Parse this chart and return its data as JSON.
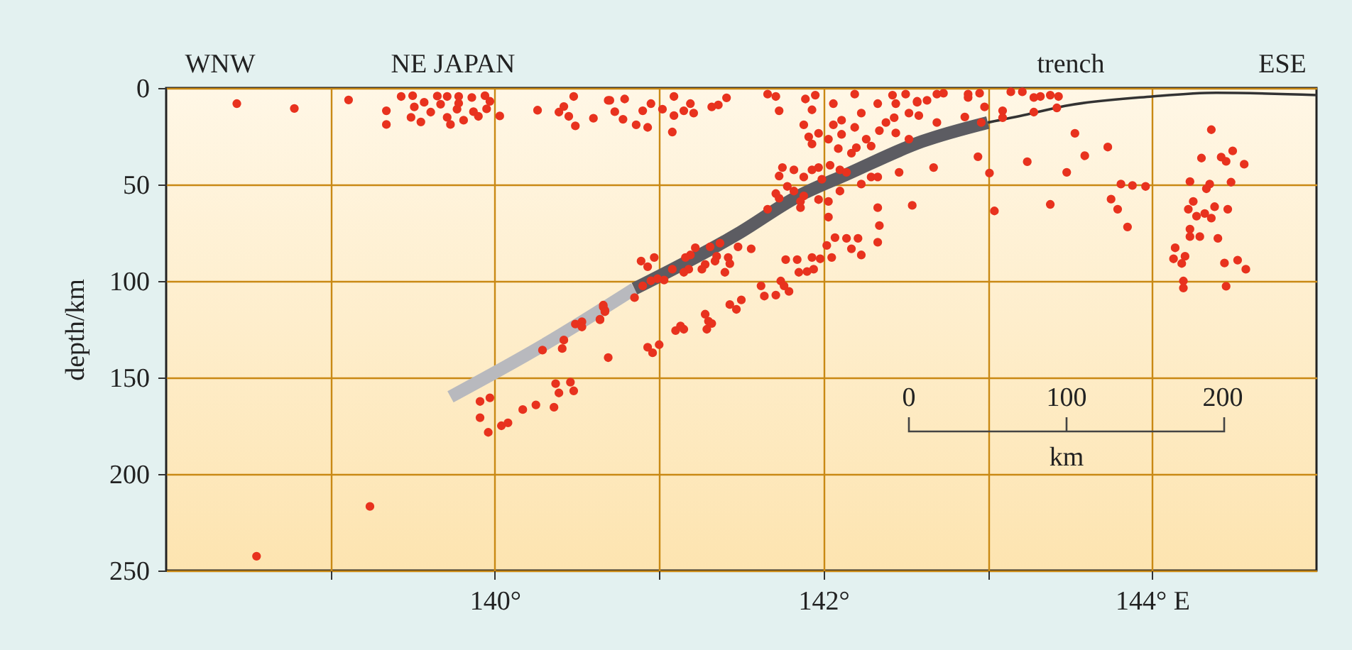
{
  "chart_data": {
    "type": "scatter",
    "ylabel": "depth/km",
    "xlim": [
      138,
      145
    ],
    "ylim": [
      250,
      0
    ],
    "xticks": [
      {
        "value": 139,
        "label": null
      },
      {
        "value": 140,
        "label": "140°"
      },
      {
        "value": 141,
        "label": null
      },
      {
        "value": 142,
        "label": "142°"
      },
      {
        "value": 143,
        "label": null
      },
      {
        "value": 144,
        "label": "144° E"
      }
    ],
    "yticks": [
      0,
      50,
      100,
      150,
      200,
      250
    ],
    "grid": true,
    "annotations": [
      "WNW",
      "NE JAPAN",
      "trench",
      "ESE",
      "0",
      "100",
      "200",
      "km"
    ],
    "series": [
      {
        "marker": "circle",
        "color": "#e8321e",
        "x": [
          138.43,
          138.78,
          139.11,
          139.34,
          139.34,
          139.43,
          139.5,
          139.51,
          139.57,
          139.49,
          139.55,
          139.61,
          139.65,
          139.67,
          139.71,
          139.71,
          139.73,
          139.77,
          139.78,
          139.78,
          139.81,
          139.86,
          139.87,
          139.9,
          139.94,
          139.97,
          139.95,
          140.03,
          140.26,
          140.39,
          140.42,
          140.48,
          140.45,
          140.49,
          140.6,
          140.69,
          139.24,
          138.55,
          139.91,
          139.97,
          139.91,
          139.96,
          140.04,
          140.08,
          140.17,
          140.25,
          140.36,
          140.39,
          140.37,
          140.46,
          140.48,
          140.29,
          140.41,
          140.42,
          140.49,
          140.53,
          140.53,
          140.64,
          140.66,
          140.67,
          140.69,
          140.7,
          140.79,
          140.73,
          140.78,
          140.86,
          140.93,
          140.9,
          140.95,
          141.02,
          141.09,
          141.09,
          141.08,
          141.15,
          141.21,
          141.19,
          141.32,
          141.36,
          141.41,
          141.66,
          141.71,
          141.73,
          141.89,
          141.95,
          141.93,
          142.06,
          142.19,
          142.33,
          142.42,
          142.5,
          142.44,
          142.57,
          142.23,
          142.38,
          142.43,
          142.52,
          141.88,
          142.06,
          142.11,
          142.19,
          141.97,
          141.91,
          142.03,
          142.11,
          142.26,
          142.2,
          142.34,
          142.44,
          142.52,
          141.93,
          142.09,
          142.17,
          142.29,
          141.93,
          141.97,
          142.04,
          142.1,
          142.14,
          141.88,
          141.99,
          141.75,
          141.82,
          141.73,
          142.23,
          142.29,
          142.33,
          142.46,
          142.1,
          141.78,
          141.82,
          141.88,
          141.71,
          141.73,
          141.66,
          141.86,
          141.86,
          141.97,
          142.03,
          142.03,
          142.33,
          142.54,
          142.34,
          142.33,
          142.21,
          142.14,
          142.17,
          142.23,
          142.07,
          142.02,
          142.05,
          141.98,
          141.93,
          141.84,
          141.77,
          141.94,
          141.9,
          141.85,
          141.56,
          141.48,
          141.37,
          141.31,
          141.35,
          141.42,
          141.43,
          141.4,
          141.34,
          141.28,
          141.26,
          141.22,
          141.19,
          141.16,
          141.18,
          141.15,
          141.08,
          141.03,
          140.99,
          140.95,
          140.9,
          140.97,
          140.93,
          140.89,
          140.85,
          140.66,
          140.67,
          140.64,
          141.62,
          141.64,
          141.71,
          141.74,
          141.76,
          141.79,
          141.5,
          141.43,
          141.47,
          141.28,
          141.3,
          141.32,
          141.29,
          141.1,
          141.15,
          141.13,
          140.93,
          140.96,
          141,
          142.69,
          142.73,
          142.88,
          142.88,
          142.95,
          142.98,
          143.14,
          143.21,
          143.28,
          143.32,
          143.38,
          143.43,
          142.63,
          142.57,
          143.09,
          143.09,
          143.28,
          143.42,
          142.86,
          142.96,
          142.69,
          142.58,
          142.94,
          142.67,
          143.01,
          143.24,
          143.53,
          143.59,
          143.73,
          143.48,
          143.81,
          143.88,
          143.96,
          143.75,
          143.79,
          143.85,
          143.38,
          143.04,
          144.36,
          144.3,
          144.42,
          144.45,
          144.49,
          144.56,
          144.23,
          144.35,
          144.33,
          144.48,
          144.25,
          144.22,
          144.27,
          144.32,
          144.38,
          144.36,
          144.46,
          144.23,
          144.23,
          144.29,
          144.4,
          144.14,
          144.13,
          144.2,
          144.18,
          144.44,
          144.52,
          144.57,
          144.19,
          144.19,
          144.45
        ],
        "values": [
          8.1,
          10.6,
          6.2,
          11.8,
          18.9,
          4.4,
          4,
          9.8,
          7.4,
          15.2,
          17.6,
          12.5,
          4.2,
          8.4,
          4.4,
          15.2,
          18.9,
          11,
          4.4,
          7.9,
          16.7,
          4.9,
          12.3,
          14.7,
          4,
          6.9,
          10.8,
          14.5,
          11.5,
          12.5,
          9.6,
          4.4,
          14.7,
          19.6,
          15.7,
          6.4,
          216.8,
          242.6,
          162.4,
          160.5,
          170.8,
          178.4,
          175,
          173.5,
          166.6,
          164.2,
          165.4,
          158,
          153.2,
          152.4,
          156.9,
          135.8,
          135,
          130.6,
          122.3,
          121.1,
          123.8,
          119.8,
          112.5,
          115.2,
          139.7,
          6.4,
          5.7,
          12.3,
          16.2,
          19.1,
          20.4,
          11.8,
          8.1,
          11,
          4.4,
          14.3,
          22.8,
          11.8,
          13,
          8.1,
          9.8,
          8.8,
          5.1,
          3.2,
          4.4,
          11.8,
          5.7,
          3.7,
          11.3,
          8.1,
          3.2,
          8.1,
          3.7,
          3.2,
          8.1,
          6.9,
          13,
          17.9,
          15.4,
          13,
          19.1,
          19.1,
          16.7,
          20.4,
          23.5,
          25.3,
          26.5,
          24,
          26.5,
          30.9,
          22.1,
          23.3,
          26.5,
          29,
          31.4,
          33.8,
          30.1,
          42.4,
          41.2,
          40,
          42.4,
          43.7,
          46.1,
          47.3,
          41.2,
          42.4,
          45.6,
          49.8,
          46.1,
          46.1,
          43.7,
          53.4,
          51,
          53.4,
          55.9,
          54.7,
          57.1,
          62.8,
          62,
          58.8,
          57.8,
          58.8,
          66.9,
          62,
          60.8,
          71.3,
          79.9,
          77.9,
          77.9,
          83.3,
          86.5,
          77.5,
          81.6,
          87.8,
          88.5,
          87.8,
          88.9,
          88.9,
          93.9,
          95.1,
          95.5,
          83.3,
          82.3,
          80.4,
          82.3,
          87.2,
          87.8,
          91,
          95.5,
          89.7,
          91.4,
          93.9,
          82.8,
          86.5,
          87.8,
          93.9,
          95.5,
          93.9,
          99.5,
          98.8,
          99.9,
          102.5,
          87.8,
          92.6,
          89.7,
          108.6,
          113.5,
          115.9,
          120.1,
          102.5,
          107.8,
          107.3,
          100,
          102.5,
          105.4,
          109.8,
          112.2,
          114.7,
          117.2,
          120.8,
          122,
          125,
          125.7,
          125,
          123.3,
          134.3,
          137.2,
          133,
          3.2,
          2.7,
          3.2,
          4.9,
          2.7,
          9.8,
          2,
          2,
          4.9,
          4.4,
          3.7,
          4.4,
          6.4,
          7.4,
          11.8,
          15.4,
          12.5,
          10.3,
          15,
          17.9,
          17.9,
          14.3,
          35.6,
          41.2,
          44.1,
          38.2,
          23.5,
          35.1,
          30.6,
          43.7,
          49.8,
          50.5,
          51,
          57.6,
          62.8,
          72,
          60.3,
          63.7,
          21.6,
          36.3,
          35.8,
          38,
          32.6,
          39.5,
          48.5,
          49.8,
          52.2,
          48.8,
          58.8,
          62.8,
          66.4,
          65,
          61.5,
          67.4,
          62.8,
          73.1,
          77,
          77,
          77.9,
          82.8,
          88.5,
          87.2,
          90.9,
          90.7,
          89.2,
          93.9,
          100,
          103.6,
          102.7
        ]
      },
      {
        "type": "line",
        "marker": "none",
        "color": "#b8b9be",
        "line_style": "solid",
        "x": [
          139.73,
          140.3,
          140.85
        ],
        "values": [
          160,
          133,
          104
        ]
      },
      {
        "type": "line",
        "marker": "none",
        "color": "#5c5c62",
        "line_style": "solid",
        "x": [
          140.85,
          141.48,
          141.85,
          142.14,
          142.6,
          143.0
        ],
        "values": [
          104,
          75.5,
          55.9,
          44.8,
          27.7,
          17.9
        ]
      },
      {
        "type": "line",
        "marker": "none",
        "color": "#333333",
        "line_style": "solid",
        "x": [
          143.0,
          143.24,
          143.47,
          144.0,
          144.39,
          145.0
        ],
        "values": [
          17.9,
          13.7,
          9.3,
          4.4,
          2.5,
          3.7
        ]
      }
    ]
  }
}
